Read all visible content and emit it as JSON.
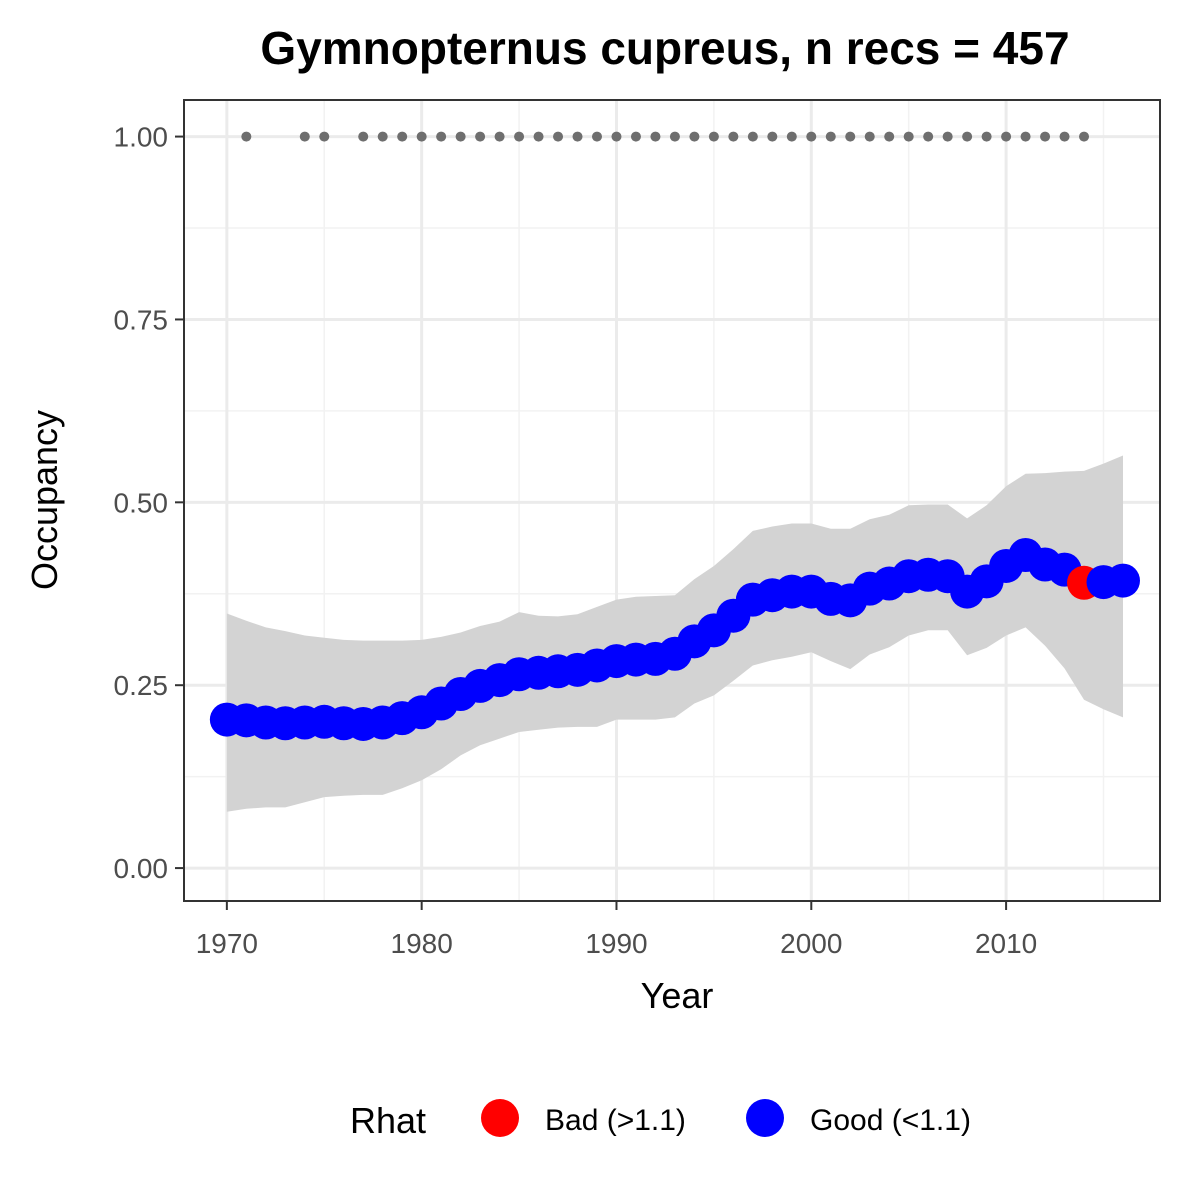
{
  "chart_data": {
    "type": "line",
    "title": "Gymnopternus cupreus, n recs = 457",
    "xlabel": "Year",
    "ylabel": "Occupancy",
    "xlim": [
      1967.8,
      2017.9
    ],
    "ylim": [
      -0.045,
      1.05
    ],
    "x_ticks": [
      1970,
      1980,
      1990,
      2000,
      2010
    ],
    "x_tick_labels": [
      "1970",
      "1980",
      "1990",
      "2000",
      "2010"
    ],
    "y_ticks": [
      0,
      0.25,
      0.5,
      0.75,
      1.0
    ],
    "y_tick_labels": [
      "0.00",
      "0.25",
      "0.50",
      "0.75",
      "1.00"
    ],
    "grid": true,
    "legend": {
      "title": "Rhat",
      "position": "bottom",
      "entries": [
        {
          "label": "Bad (>1.1)",
          "color": "#ff0000"
        },
        {
          "label": "Good (<1.1)",
          "color": "#0000ff"
        }
      ]
    },
    "ribbon_color": "#d3d3d3",
    "record_points_color": "#6e6e6e",
    "record_years": [
      1971,
      1974,
      1975,
      1977,
      1978,
      1979,
      1980,
      1981,
      1982,
      1983,
      1984,
      1985,
      1986,
      1987,
      1988,
      1989,
      1990,
      1991,
      1992,
      1993,
      1994,
      1995,
      1996,
      1997,
      1998,
      1999,
      2000,
      2001,
      2002,
      2003,
      2004,
      2005,
      2006,
      2007,
      2008,
      2009,
      2010,
      2011,
      2012,
      2013,
      2014
    ],
    "record_value": 1.0,
    "series": [
      {
        "x": [
          1970,
          1971,
          1972,
          1973,
          1974,
          1975,
          1976,
          1977,
          1978,
          1979,
          1980,
          1981,
          1982,
          1983,
          1984,
          1985,
          1986,
          1987,
          1988,
          1989,
          1990,
          1991,
          1992,
          1993,
          1994,
          1995,
          1996,
          1997,
          1998,
          1999,
          2000,
          2001,
          2002,
          2003,
          2004,
          2005,
          2006,
          2007,
          2008,
          2009,
          2010,
          2011,
          2012,
          2013,
          2014,
          2015,
          2016
        ],
        "mean": [
          0.203,
          0.202,
          0.199,
          0.198,
          0.199,
          0.2,
          0.198,
          0.197,
          0.199,
          0.205,
          0.213,
          0.225,
          0.238,
          0.249,
          0.257,
          0.265,
          0.267,
          0.269,
          0.271,
          0.277,
          0.283,
          0.285,
          0.286,
          0.293,
          0.31,
          0.325,
          0.345,
          0.367,
          0.373,
          0.378,
          0.378,
          0.368,
          0.366,
          0.382,
          0.389,
          0.399,
          0.401,
          0.399,
          0.378,
          0.392,
          0.413,
          0.428,
          0.415,
          0.408,
          0.39,
          0.391,
          0.393
        ],
        "lower": [
          0.077,
          0.081,
          0.083,
          0.083,
          0.09,
          0.097,
          0.099,
          0.1,
          0.1,
          0.109,
          0.12,
          0.135,
          0.154,
          0.168,
          0.177,
          0.186,
          0.189,
          0.192,
          0.193,
          0.193,
          0.203,
          0.203,
          0.203,
          0.206,
          0.225,
          0.236,
          0.256,
          0.277,
          0.284,
          0.289,
          0.295,
          0.283,
          0.272,
          0.292,
          0.302,
          0.318,
          0.325,
          0.325,
          0.291,
          0.301,
          0.318,
          0.329,
          0.304,
          0.273,
          0.23,
          0.217,
          0.206
        ],
        "upper": [
          0.348,
          0.338,
          0.329,
          0.324,
          0.318,
          0.315,
          0.312,
          0.311,
          0.311,
          0.311,
          0.312,
          0.316,
          0.322,
          0.331,
          0.337,
          0.35,
          0.345,
          0.344,
          0.347,
          0.357,
          0.367,
          0.371,
          0.372,
          0.373,
          0.395,
          0.413,
          0.436,
          0.461,
          0.467,
          0.471,
          0.471,
          0.464,
          0.464,
          0.477,
          0.483,
          0.496,
          0.497,
          0.497,
          0.478,
          0.496,
          0.522,
          0.539,
          0.54,
          0.542,
          0.543,
          0.553,
          0.564
        ],
        "rhat_status": [
          "good",
          "good",
          "good",
          "good",
          "good",
          "good",
          "good",
          "good",
          "good",
          "good",
          "good",
          "good",
          "good",
          "good",
          "good",
          "good",
          "good",
          "good",
          "good",
          "good",
          "good",
          "good",
          "good",
          "good",
          "good",
          "good",
          "good",
          "good",
          "good",
          "good",
          "good",
          "good",
          "good",
          "good",
          "good",
          "good",
          "good",
          "good",
          "good",
          "good",
          "good",
          "good",
          "good",
          "good",
          "bad",
          "good",
          "good"
        ]
      }
    ]
  }
}
